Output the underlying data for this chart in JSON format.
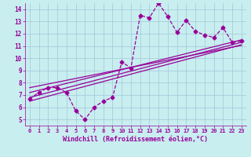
{
  "title": "",
  "xlabel": "Windchill (Refroidissement éolien,°C)",
  "ylabel": "",
  "bg_color": "#c8eef0",
  "grid_color": "#a0c8d8",
  "line_color": "#990099",
  "x_data": [
    0,
    1,
    2,
    3,
    4,
    5,
    6,
    7,
    8,
    9,
    10,
    11,
    12,
    13,
    14,
    15,
    16,
    17,
    18,
    19,
    20,
    21,
    22,
    23
  ],
  "y_scatter": [
    6.7,
    7.2,
    7.6,
    7.6,
    7.2,
    5.7,
    5.0,
    6.0,
    6.5,
    6.8,
    9.7,
    9.2,
    13.5,
    13.3,
    14.5,
    13.4,
    12.1,
    13.1,
    12.2,
    11.9,
    11.7,
    12.5,
    11.3,
    11.4
  ],
  "xlim": [
    -0.5,
    23.5
  ],
  "ylim": [
    4.5,
    14.5
  ],
  "yticks": [
    5,
    6,
    7,
    8,
    9,
    10,
    11,
    12,
    13,
    14
  ],
  "xticks": [
    0,
    1,
    2,
    3,
    4,
    5,
    6,
    7,
    8,
    9,
    10,
    11,
    12,
    13,
    14,
    15,
    16,
    17,
    18,
    19,
    20,
    21,
    22,
    23
  ],
  "reg_lines": [
    {
      "x0": 0,
      "y0": 6.5,
      "x1": 23,
      "y1": 11.1
    },
    {
      "x0": 0,
      "y0": 6.8,
      "x1": 23,
      "y1": 11.3
    },
    {
      "x0": 0,
      "y0": 7.2,
      "x1": 23,
      "y1": 11.5
    },
    {
      "x0": 0,
      "y0": 7.6,
      "x1": 23,
      "y1": 11.05
    }
  ]
}
